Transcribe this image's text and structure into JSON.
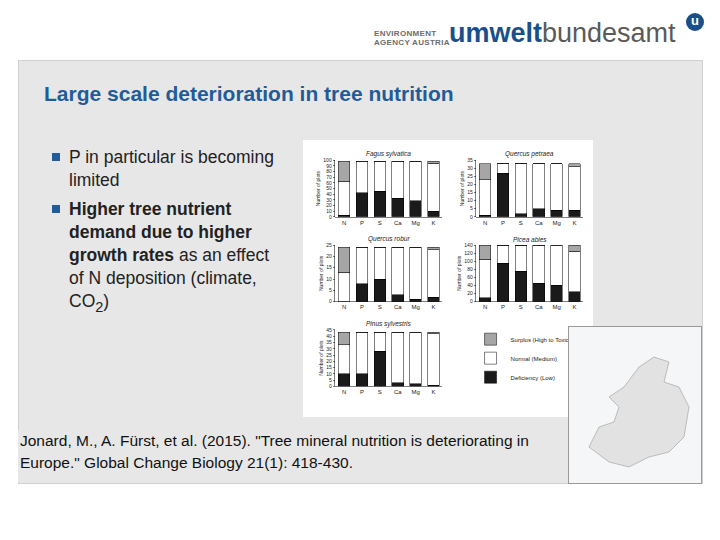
{
  "slide": {
    "logo": {
      "agency_lines": [
        "ENVIRONMENT",
        "AGENCY AUSTRIA"
      ],
      "name_parts": [
        "umwelt",
        "bundesamt"
      ],
      "mark": "u"
    },
    "title": "Large scale deterioration in tree nutrition",
    "bullets": [
      [
        {
          "text": "P in particular is becoming limited"
        }
      ],
      [
        {
          "text": "Higher tree nutrient demand due to higher growth rates",
          "bold": true
        },
        {
          "text": " as an effect of N deposition (climate, CO"
        },
        {
          "text": "2",
          "sub": true
        },
        {
          "text": ")"
        }
      ]
    ],
    "citation": "Jonard, M., A. Fürst, et al. (2015). \"Tree mineral nutrition is deteriorating in Europe.\" Global Change Biology 21(1): 418-430."
  },
  "chart_data": [
    {
      "type": "bar",
      "title": "Fagus sylvatica",
      "y_label": "Number of plots",
      "stacked": true,
      "categories": [
        "N",
        "P",
        "S",
        "Ca",
        "Mg",
        "K"
      ],
      "series": [
        {
          "name": "Deficiency (Low)",
          "color": "#1a1a1a",
          "values": [
            3,
            43,
            45,
            33,
            28,
            10
          ]
        },
        {
          "name": "Normal (Medium)",
          "color": "#ffffff",
          "values": [
            60,
            55,
            53,
            65,
            70,
            85
          ]
        },
        {
          "name": "Surplus (High to Toxic)",
          "color": "#a6a6a6",
          "values": [
            35,
            0,
            0,
            0,
            0,
            3
          ]
        }
      ],
      "ylim": [
        0,
        100
      ],
      "yticks": [
        0,
        10,
        20,
        30,
        40,
        50,
        60,
        70,
        80,
        90,
        100
      ]
    },
    {
      "type": "bar",
      "title": "Quercus petraea",
      "y_label": "Number of plots",
      "stacked": true,
      "categories": [
        "N",
        "P",
        "S",
        "Ca",
        "Mg",
        "K"
      ],
      "series": [
        {
          "name": "Deficiency (Low)",
          "color": "#1a1a1a",
          "values": [
            1,
            27,
            2,
            5,
            4,
            4
          ]
        },
        {
          "name": "Normal (Medium)",
          "color": "#ffffff",
          "values": [
            22,
            6,
            31,
            28,
            29,
            27
          ]
        },
        {
          "name": "Surplus (High to Toxic)",
          "color": "#a6a6a6",
          "values": [
            10,
            0,
            0,
            0,
            0,
            2
          ]
        }
      ],
      "ylim": [
        0,
        35
      ],
      "yticks": [
        0,
        5,
        10,
        15,
        20,
        25,
        30,
        35
      ]
    },
    {
      "type": "bar",
      "title": "Quercus robur",
      "y_label": "Number of plots",
      "stacked": true,
      "categories": [
        "N",
        "P",
        "S",
        "Ca",
        "Mg",
        "K"
      ],
      "series": [
        {
          "name": "Deficiency (Low)",
          "color": "#1a1a1a",
          "values": [
            0,
            8,
            10,
            3,
            1,
            2
          ]
        },
        {
          "name": "Normal (Medium)",
          "color": "#ffffff",
          "values": [
            13,
            16,
            14,
            21,
            23,
            21
          ]
        },
        {
          "name": "Surplus (High to Toxic)",
          "color": "#a6a6a6",
          "values": [
            11,
            0,
            0,
            0,
            0,
            1
          ]
        }
      ],
      "ylim": [
        0,
        25
      ],
      "yticks": [
        0,
        5,
        10,
        15,
        20,
        25
      ]
    },
    {
      "type": "bar",
      "title": "Picea abies",
      "y_label": "Number of plots",
      "stacked": true,
      "categories": [
        "N",
        "P",
        "S",
        "Ca",
        "Mg",
        "K"
      ],
      "series": [
        {
          "name": "Deficiency (Low)",
          "color": "#1a1a1a",
          "values": [
            10,
            95,
            75,
            45,
            40,
            25
          ]
        },
        {
          "name": "Normal (Medium)",
          "color": "#ffffff",
          "values": [
            95,
            45,
            65,
            93,
            98,
            100
          ]
        },
        {
          "name": "Surplus (High to Toxic)",
          "color": "#a6a6a6",
          "values": [
            35,
            0,
            0,
            2,
            2,
            15
          ]
        }
      ],
      "ylim": [
        0,
        140
      ],
      "yticks": [
        0,
        20,
        40,
        60,
        80,
        100,
        120,
        140
      ]
    },
    {
      "type": "bar",
      "title": "Pinus sylvestris",
      "y_label": "Number of plots",
      "stacked": true,
      "legend": "right",
      "categories": [
        "N",
        "P",
        "S",
        "Ca",
        "Mg",
        "K"
      ],
      "series": [
        {
          "name": "Deficiency (Low)",
          "color": "#1a1a1a",
          "values": [
            10,
            10,
            28,
            3,
            2,
            1
          ]
        },
        {
          "name": "Normal (Medium)",
          "color": "#ffffff",
          "values": [
            23,
            33,
            15,
            40,
            41,
            41
          ]
        },
        {
          "name": "Surplus (High to Toxic)",
          "color": "#a6a6a6",
          "values": [
            10,
            0,
            0,
            0,
            0,
            1
          ]
        }
      ],
      "ylim": [
        0,
        45
      ],
      "yticks": [
        0,
        5,
        10,
        15,
        20,
        25,
        30,
        35,
        40,
        45
      ]
    }
  ]
}
